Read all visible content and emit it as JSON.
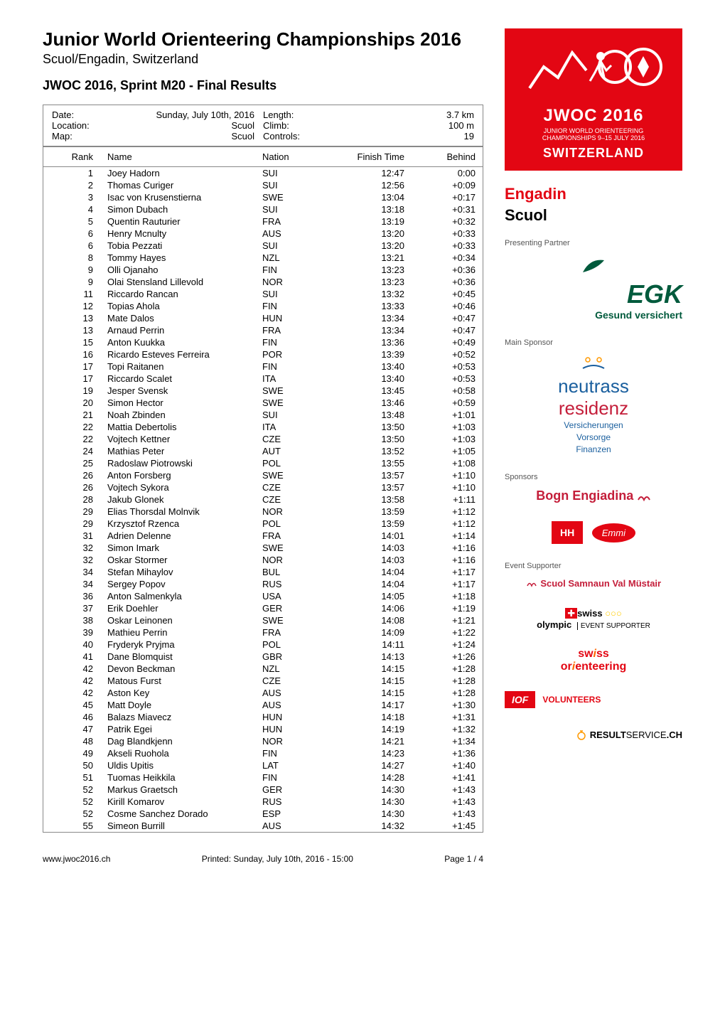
{
  "header": {
    "title": "Junior World Orienteering Championships 2016",
    "subtitle": "Scuol/Engadin, Switzerland",
    "event_title": "JWOC 2016, Sprint   M20 - Final Results"
  },
  "meta": {
    "date_label": "Date:",
    "date_value": "Sunday, July 10th, 2016",
    "location_label": "Location:",
    "location_value": "Scuol",
    "map_label": "Map:",
    "map_value": "Scuol",
    "length_label": "Length:",
    "length_value": "3.7 km",
    "climb_label": "Climb:",
    "climb_value": "100 m",
    "controls_label": "Controls:",
    "controls_value": "19"
  },
  "columns": {
    "rank": "Rank",
    "name": "Name",
    "nation": "Nation",
    "finish": "Finish Time",
    "behind": "Behind"
  },
  "results": [
    {
      "rank": "1",
      "name": "Joey Hadorn",
      "nation": "SUI",
      "finish": "12:47",
      "behind": "0:00"
    },
    {
      "rank": "2",
      "name": "Thomas Curiger",
      "nation": "SUI",
      "finish": "12:56",
      "behind": "+0:09"
    },
    {
      "rank": "3",
      "name": "Isac von Krusenstierna",
      "nation": "SWE",
      "finish": "13:04",
      "behind": "+0:17"
    },
    {
      "rank": "4",
      "name": "Simon Dubach",
      "nation": "SUI",
      "finish": "13:18",
      "behind": "+0:31"
    },
    {
      "rank": "5",
      "name": "Quentin Rauturier",
      "nation": "FRA",
      "finish": "13:19",
      "behind": "+0:32"
    },
    {
      "rank": "6",
      "name": "Henry Mcnulty",
      "nation": "AUS",
      "finish": "13:20",
      "behind": "+0:33"
    },
    {
      "rank": "6",
      "name": "Tobia Pezzati",
      "nation": "SUI",
      "finish": "13:20",
      "behind": "+0:33"
    },
    {
      "rank": "8",
      "name": "Tommy Hayes",
      "nation": "NZL",
      "finish": "13:21",
      "behind": "+0:34"
    },
    {
      "rank": "9",
      "name": "Olli Ojanaho",
      "nation": "FIN",
      "finish": "13:23",
      "behind": "+0:36"
    },
    {
      "rank": "9",
      "name": "Olai Stensland Lillevold",
      "nation": "NOR",
      "finish": "13:23",
      "behind": "+0:36"
    },
    {
      "rank": "11",
      "name": "Riccardo Rancan",
      "nation": "SUI",
      "finish": "13:32",
      "behind": "+0:45"
    },
    {
      "rank": "12",
      "name": "Topias Ahola",
      "nation": "FIN",
      "finish": "13:33",
      "behind": "+0:46"
    },
    {
      "rank": "13",
      "name": "Mate Dalos",
      "nation": "HUN",
      "finish": "13:34",
      "behind": "+0:47"
    },
    {
      "rank": "13",
      "name": "Arnaud Perrin",
      "nation": "FRA",
      "finish": "13:34",
      "behind": "+0:47"
    },
    {
      "rank": "15",
      "name": "Anton Kuukka",
      "nation": "FIN",
      "finish": "13:36",
      "behind": "+0:49"
    },
    {
      "rank": "16",
      "name": "Ricardo Esteves Ferreira",
      "nation": "POR",
      "finish": "13:39",
      "behind": "+0:52"
    },
    {
      "rank": "17",
      "name": "Topi Raitanen",
      "nation": "FIN",
      "finish": "13:40",
      "behind": "+0:53"
    },
    {
      "rank": "17",
      "name": "Riccardo Scalet",
      "nation": "ITA",
      "finish": "13:40",
      "behind": "+0:53"
    },
    {
      "rank": "19",
      "name": "Jesper Svensk",
      "nation": "SWE",
      "finish": "13:45",
      "behind": "+0:58"
    },
    {
      "rank": "20",
      "name": "Simon Hector",
      "nation": "SWE",
      "finish": "13:46",
      "behind": "+0:59"
    },
    {
      "rank": "21",
      "name": "Noah Zbinden",
      "nation": "SUI",
      "finish": "13:48",
      "behind": "+1:01"
    },
    {
      "rank": "22",
      "name": "Mattia Debertolis",
      "nation": "ITA",
      "finish": "13:50",
      "behind": "+1:03"
    },
    {
      "rank": "22",
      "name": "Vojtech Kettner",
      "nation": "CZE",
      "finish": "13:50",
      "behind": "+1:03"
    },
    {
      "rank": "24",
      "name": "Mathias Peter",
      "nation": "AUT",
      "finish": "13:52",
      "behind": "+1:05"
    },
    {
      "rank": "25",
      "name": "Radoslaw Piotrowski",
      "nation": "POL",
      "finish": "13:55",
      "behind": "+1:08"
    },
    {
      "rank": "26",
      "name": "Anton Forsberg",
      "nation": "SWE",
      "finish": "13:57",
      "behind": "+1:10"
    },
    {
      "rank": "26",
      "name": "Vojtech Sykora",
      "nation": "CZE",
      "finish": "13:57",
      "behind": "+1:10"
    },
    {
      "rank": "28",
      "name": "Jakub Glonek",
      "nation": "CZE",
      "finish": "13:58",
      "behind": "+1:11"
    },
    {
      "rank": "29",
      "name": "Elias Thorsdal Molnvik",
      "nation": "NOR",
      "finish": "13:59",
      "behind": "+1:12"
    },
    {
      "rank": "29",
      "name": "Krzysztof Rzenca",
      "nation": "POL",
      "finish": "13:59",
      "behind": "+1:12"
    },
    {
      "rank": "31",
      "name": "Adrien Delenne",
      "nation": "FRA",
      "finish": "14:01",
      "behind": "+1:14"
    },
    {
      "rank": "32",
      "name": "Simon Imark",
      "nation": "SWE",
      "finish": "14:03",
      "behind": "+1:16"
    },
    {
      "rank": "32",
      "name": "Oskar Stormer",
      "nation": "NOR",
      "finish": "14:03",
      "behind": "+1:16"
    },
    {
      "rank": "34",
      "name": "Stefan Mihaylov",
      "nation": "BUL",
      "finish": "14:04",
      "behind": "+1:17"
    },
    {
      "rank": "34",
      "name": "Sergey Popov",
      "nation": "RUS",
      "finish": "14:04",
      "behind": "+1:17"
    },
    {
      "rank": "36",
      "name": "Anton Salmenkyla",
      "nation": "USA",
      "finish": "14:05",
      "behind": "+1:18"
    },
    {
      "rank": "37",
      "name": "Erik Doehler",
      "nation": "GER",
      "finish": "14:06",
      "behind": "+1:19"
    },
    {
      "rank": "38",
      "name": "Oskar Leinonen",
      "nation": "SWE",
      "finish": "14:08",
      "behind": "+1:21"
    },
    {
      "rank": "39",
      "name": "Mathieu Perrin",
      "nation": "FRA",
      "finish": "14:09",
      "behind": "+1:22"
    },
    {
      "rank": "40",
      "name": "Fryderyk Pryjma",
      "nation": "POL",
      "finish": "14:11",
      "behind": "+1:24"
    },
    {
      "rank": "41",
      "name": "Dane Blomquist",
      "nation": "GBR",
      "finish": "14:13",
      "behind": "+1:26"
    },
    {
      "rank": "42",
      "name": "Devon Beckman",
      "nation": "NZL",
      "finish": "14:15",
      "behind": "+1:28"
    },
    {
      "rank": "42",
      "name": "Matous Furst",
      "nation": "CZE",
      "finish": "14:15",
      "behind": "+1:28"
    },
    {
      "rank": "42",
      "name": "Aston Key",
      "nation": "AUS",
      "finish": "14:15",
      "behind": "+1:28"
    },
    {
      "rank": "45",
      "name": "Matt Doyle",
      "nation": "AUS",
      "finish": "14:17",
      "behind": "+1:30"
    },
    {
      "rank": "46",
      "name": "Balazs Miavecz",
      "nation": "HUN",
      "finish": "14:18",
      "behind": "+1:31"
    },
    {
      "rank": "47",
      "name": "Patrik Egei",
      "nation": "HUN",
      "finish": "14:19",
      "behind": "+1:32"
    },
    {
      "rank": "48",
      "name": "Dag Blandkjenn",
      "nation": "NOR",
      "finish": "14:21",
      "behind": "+1:34"
    },
    {
      "rank": "49",
      "name": "Akseli Ruohola",
      "nation": "FIN",
      "finish": "14:23",
      "behind": "+1:36"
    },
    {
      "rank": "50",
      "name": "Uldis Upitis",
      "nation": "LAT",
      "finish": "14:27",
      "behind": "+1:40"
    },
    {
      "rank": "51",
      "name": "Tuomas Heikkila",
      "nation": "FIN",
      "finish": "14:28",
      "behind": "+1:41"
    },
    {
      "rank": "52",
      "name": "Markus Graetsch",
      "nation": "GER",
      "finish": "14:30",
      "behind": "+1:43"
    },
    {
      "rank": "52",
      "name": "Kirill Komarov",
      "nation": "RUS",
      "finish": "14:30",
      "behind": "+1:43"
    },
    {
      "rank": "52",
      "name": "Cosme Sanchez Dorado",
      "nation": "ESP",
      "finish": "14:30",
      "behind": "+1:43"
    },
    {
      "rank": "55",
      "name": "Simeon Burrill",
      "nation": "AUS",
      "finish": "14:32",
      "behind": "+1:45"
    }
  ],
  "footer": {
    "url": "www.jwoc2016.ch",
    "printed": "Printed: Sunday, July 10th, 2016 - 15:00",
    "page": "Page 1 / 4"
  },
  "sidebar": {
    "jwoc_year": "JWOC 2016",
    "jwoc_sub1": "JUNIOR WORLD ORIENTEERING",
    "jwoc_sub2": "CHAMPIONSHIPS 9–15 JULY 2016",
    "jwoc_country": "SWITZERLAND",
    "engadin": "Engadin",
    "scuol": "Scuol",
    "presenting_label": "Presenting Partner",
    "egk": "EGK",
    "egk_sub": "Gesund versichert",
    "main_sponsor_label": "Main Sponsor",
    "neutrass": "neutrass",
    "residenz": "residenz",
    "neutrass_sub1": "Versicherungen",
    "neutrass_sub2": "Vorsorge",
    "neutrass_sub3": "Finanzen",
    "sponsors_label": "Sponsors",
    "bogn": "Bogn Engiadina",
    "hh": "HH",
    "emmi": "Emmi",
    "event_label": "Event Supporter",
    "scuol_samnaun": "Scuol Samnaun Val Müstair",
    "swiss_olympic_swiss": "swiss",
    "swiss_olympic_olympic": "olympic",
    "swiss_olympic_event": "EVENT SUPPORTER",
    "swiss_orient_swiss": "sw",
    "swiss_orient_i": "i",
    "swiss_orient_ss": "ss",
    "swiss_orient_orient": "or",
    "swiss_orient_i2": "i",
    "swiss_orient_enteering": "enteering",
    "iof": "IOF",
    "volunteers": "VOLUNTEERS",
    "resultservice_result": "RESULT",
    "resultservice_service": "SERVICE",
    "resultservice_ch": ".CH"
  },
  "colors": {
    "red": "#e30613",
    "green": "#005a3c",
    "blue": "#1a5f9e",
    "darkred": "#c41e3a",
    "orange": "#ff6600"
  }
}
